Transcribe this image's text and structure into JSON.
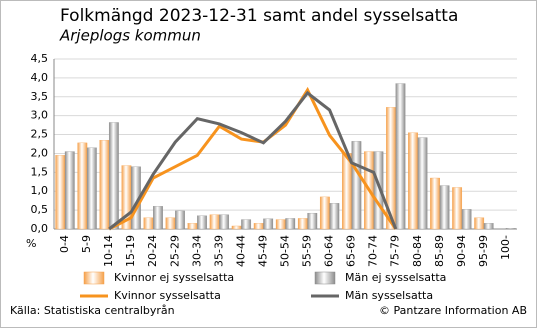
{
  "chart_data": {
    "type": "bar",
    "title": "Folkmängd 2023-12-31 samt andel sysselsatta",
    "subtitle": "Arjeplogs kommun",
    "y_label": "%",
    "categories": [
      "0-4",
      "5-9",
      "10-14",
      "15-19",
      "20-24",
      "25-29",
      "30-34",
      "35-39",
      "40-44",
      "45-49",
      "50-54",
      "55-59",
      "60-64",
      "65-69",
      "70-74",
      "75-79",
      "80-84",
      "85-89",
      "90-94",
      "95-99",
      "100-"
    ],
    "series": [
      {
        "name": "Kvinnor ej sysselsatta",
        "type": "bar",
        "color": "#f5a04a",
        "values": [
          1.95,
          2.28,
          2.35,
          1.68,
          0.3,
          0.3,
          0.15,
          0.38,
          0.08,
          0.15,
          0.25,
          0.28,
          0.85,
          2.0,
          2.05,
          3.22,
          2.55,
          1.35,
          1.1,
          0.3,
          0.0
        ]
      },
      {
        "name": "Män ej sysselsatta",
        "type": "bar",
        "color": "#8c8c8c",
        "values": [
          2.05,
          2.15,
          2.82,
          1.65,
          0.6,
          0.48,
          0.35,
          0.38,
          0.25,
          0.27,
          0.28,
          0.42,
          0.68,
          2.32,
          2.05,
          3.85,
          2.42,
          1.15,
          0.52,
          0.15,
          0.02
        ]
      },
      {
        "name": "Kvinnor sysselsatta",
        "type": "line",
        "color": "#f7931e",
        "values": [
          null,
          null,
          0.0,
          0.3,
          1.35,
          1.65,
          1.95,
          2.72,
          2.38,
          2.3,
          2.75,
          3.68,
          2.48,
          1.75,
          0.85,
          0.0,
          null,
          null,
          null,
          null,
          null
        ]
      },
      {
        "name": "Män sysselsatta",
        "type": "line",
        "color": "#666666",
        "values": [
          null,
          null,
          0.0,
          0.45,
          1.45,
          2.3,
          2.92,
          2.78,
          2.55,
          2.28,
          2.85,
          3.6,
          3.15,
          1.75,
          1.5,
          0.0,
          null,
          null,
          null,
          null,
          null
        ]
      }
    ],
    "ylim": [
      0,
      4.5
    ],
    "yticks": [
      {
        "value": 0,
        "label": "0,0"
      },
      {
        "value": 0.5,
        "label": "0,5"
      },
      {
        "value": 1,
        "label": "1,0"
      },
      {
        "value": 1.5,
        "label": "1,5"
      },
      {
        "value": 2,
        "label": "2,0"
      },
      {
        "value": 2.5,
        "label": "2,5"
      },
      {
        "value": 3,
        "label": "3,0"
      },
      {
        "value": 3.5,
        "label": "3,5"
      },
      {
        "value": 4,
        "label": "4,0"
      },
      {
        "value": 4.5,
        "label": "4,5"
      }
    ],
    "grid": true,
    "source": "Källa: Statistiska centralbyrån",
    "copyright": "© Pantzare Information AB"
  }
}
